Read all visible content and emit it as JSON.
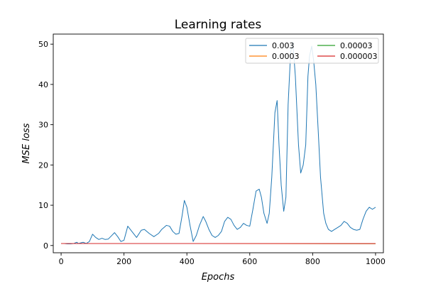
{
  "chart_data": {
    "type": "line",
    "title": "Learning rates",
    "xlabel": "Epochs",
    "ylabel": "MSE loss",
    "xlim": [
      -25,
      1025
    ],
    "ylim": [
      -1.8,
      52.5
    ],
    "xticks": [
      0,
      200,
      400,
      600,
      800,
      1000
    ],
    "yticks": [
      0,
      10,
      20,
      30,
      40,
      50
    ],
    "grid": false,
    "legend": {
      "placement": "top-right",
      "columns": 2
    },
    "series": [
      {
        "name": "0.003",
        "color": "#1f77b4",
        "x": [
          0,
          10,
          20,
          30,
          40,
          50,
          55,
          60,
          70,
          80,
          90,
          100,
          110,
          120,
          130,
          140,
          150,
          160,
          170,
          180,
          190,
          200,
          212,
          225,
          240,
          255,
          265,
          280,
          295,
          310,
          320,
          335,
          345,
          355,
          365,
          375,
          385,
          392,
          400,
          410,
          420,
          430,
          440,
          452,
          460,
          470,
          480,
          490,
          500,
          510,
          520,
          530,
          540,
          550,
          560,
          570,
          580,
          590,
          600,
          610,
          620,
          630,
          637,
          645,
          655,
          662,
          670,
          680,
          687,
          693,
          700,
          708,
          715,
          722,
          730,
          737,
          745,
          755,
          762,
          770,
          778,
          785,
          790,
          797,
          803,
          810,
          818,
          825,
          835,
          842,
          850,
          860,
          870,
          880,
          890,
          900,
          910,
          920,
          930,
          940,
          950,
          960,
          970,
          980,
          990,
          1000
        ],
        "y": [
          0.5,
          0.5,
          0.4,
          0.4,
          0.5,
          0.8,
          0.5,
          0.6,
          0.8,
          0.5,
          1.0,
          2.8,
          2.0,
          1.5,
          1.8,
          1.5,
          1.6,
          2.4,
          3.2,
          2.2,
          1.0,
          1.3,
          4.8,
          3.5,
          2.0,
          3.8,
          4.0,
          3.0,
          2.2,
          3.0,
          4.0,
          5.0,
          4.8,
          3.5,
          2.8,
          3.0,
          7.5,
          11.2,
          9.5,
          5.0,
          1.0,
          2.5,
          5.0,
          7.2,
          6.0,
          4.0,
          2.5,
          2.0,
          2.5,
          3.5,
          6.0,
          7.0,
          6.5,
          5.0,
          4.0,
          4.5,
          5.5,
          5.0,
          4.8,
          9.0,
          13.5,
          14.0,
          12.0,
          8.0,
          5.5,
          8.0,
          17.0,
          33.0,
          36.0,
          25.0,
          15.0,
          8.5,
          12.0,
          35.0,
          48.0,
          50.5,
          42.0,
          25.0,
          18.0,
          20.0,
          25.0,
          42.0,
          47.0,
          49.5,
          46.0,
          40.0,
          28.0,
          17.0,
          8.0,
          5.5,
          4.0,
          3.5,
          4.0,
          4.5,
          5.0,
          6.0,
          5.5,
          4.5,
          4.0,
          3.8,
          4.0,
          6.5,
          8.5,
          9.5,
          9.0,
          9.5
        ]
      },
      {
        "name": "0.0003",
        "color": "#ff7f0e",
        "x": [
          0,
          1000
        ],
        "y": [
          0.5,
          0.45
        ]
      },
      {
        "name": "0.00003",
        "color": "#2ca02c",
        "x": [
          0,
          1000
        ],
        "y": [
          0.5,
          0.48
        ]
      },
      {
        "name": "0.000003",
        "color": "#d62728",
        "x": [
          0,
          1000
        ],
        "y": [
          0.5,
          0.5
        ]
      }
    ]
  }
}
